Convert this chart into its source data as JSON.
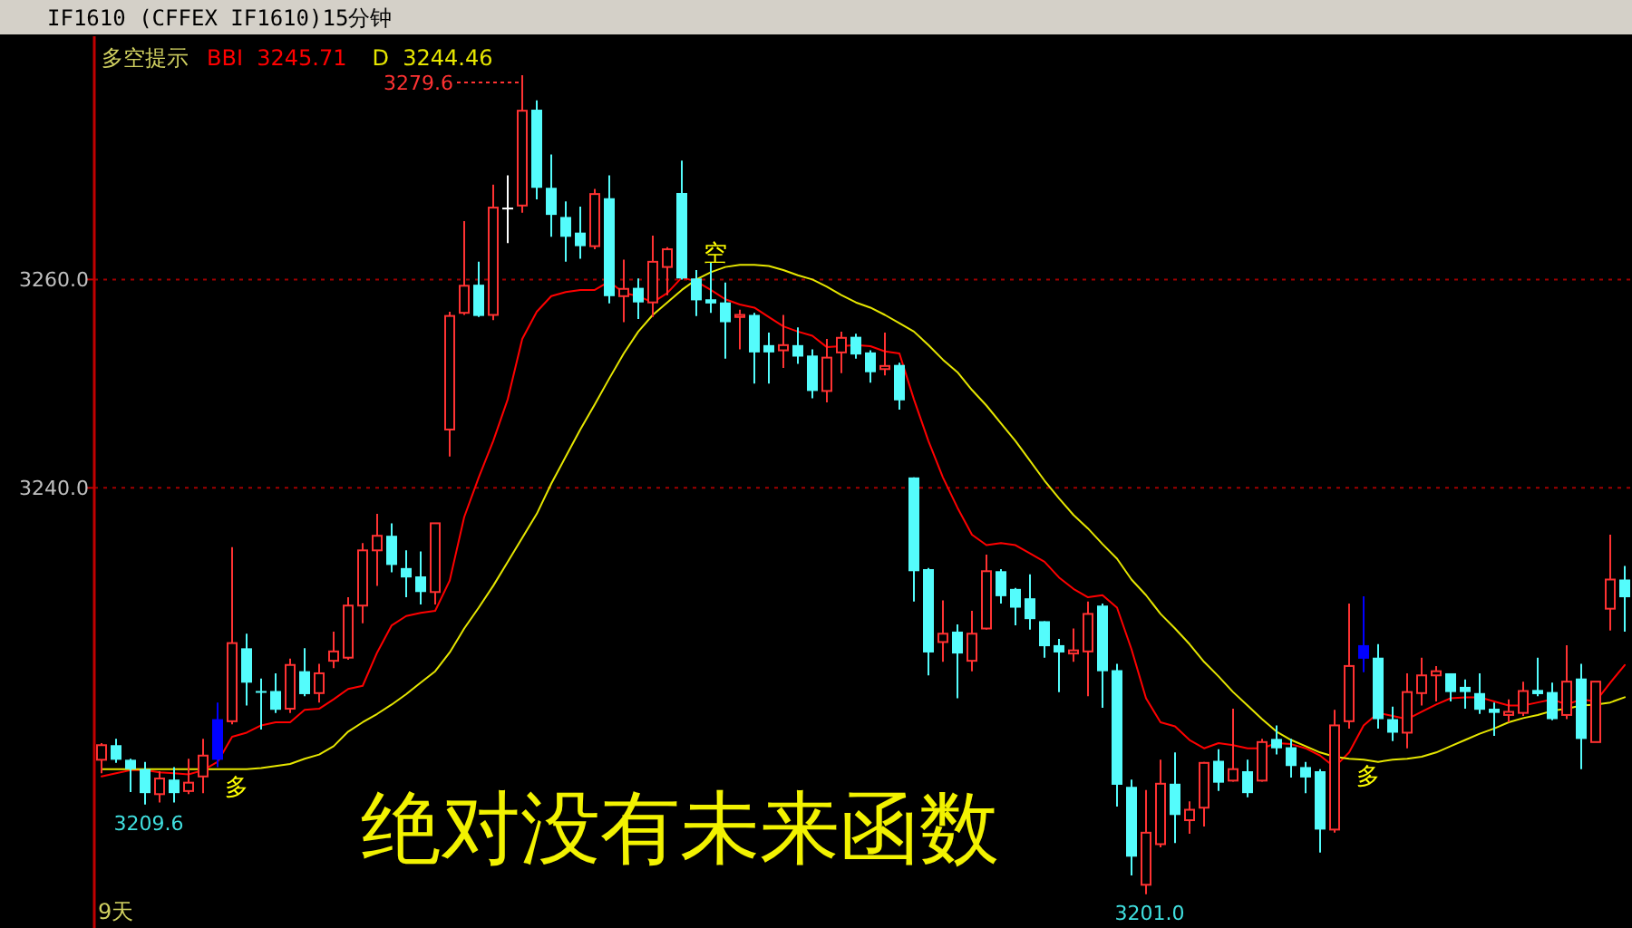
{
  "chart_data": {
    "type": "candlestick",
    "title": "IF1610  (CFFEX IF1610)15分钟",
    "legend_title": "多空提示",
    "legend": "top left",
    "grid": "y",
    "ylim": [
      3198.1,
      3283.0
    ],
    "yticks": [
      {
        "value": 3240,
        "label": "3240.0"
      },
      {
        "value": 3260,
        "label": "3260.0"
      }
    ],
    "categories": [
      null,
      null,
      null,
      null,
      null,
      null,
      null,
      null,
      null,
      null,
      null,
      null,
      null,
      null,
      null,
      null,
      null,
      null,
      null,
      null,
      null,
      null,
      null,
      null,
      null,
      null,
      null,
      null,
      null,
      null,
      null,
      null,
      null,
      null,
      null,
      null,
      null,
      null,
      null,
      null,
      null,
      null,
      null,
      null,
      null,
      null,
      null,
      null,
      null,
      null,
      null,
      null,
      null,
      null,
      null,
      null,
      null,
      null,
      null,
      null,
      null,
      null,
      null,
      null,
      null,
      null,
      null,
      null,
      null,
      null,
      null,
      null,
      null,
      null,
      null,
      null,
      null,
      null,
      null,
      null,
      null,
      null,
      null,
      null,
      null,
      null,
      null,
      null,
      null,
      null,
      null,
      null,
      null,
      null,
      null,
      null,
      null,
      null,
      null,
      null,
      null,
      null,
      null,
      null,
      null,
      null
    ],
    "ohlc": [
      [
        3213.9,
        3215.5,
        3212.6,
        3215.3
      ],
      [
        3215.3,
        3215.9,
        3213.6,
        3213.9
      ],
      [
        3213.9,
        3214.0,
        3210.8,
        3213.0
      ],
      [
        3213.0,
        3213.7,
        3209.6,
        3210.7
      ],
      [
        3210.6,
        3212.8,
        3209.8,
        3212.1
      ],
      [
        3212.0,
        3213.2,
        3209.8,
        3210.7
      ],
      [
        3210.9,
        3214.0,
        3210.6,
        3211.7
      ],
      [
        3212.3,
        3215.9,
        3210.7,
        3214.3
      ],
      [
        3213.9,
        3219.4,
        3213.2,
        3217.8
      ],
      [
        3217.6,
        3234.3,
        3217.3,
        3225.1
      ],
      [
        3224.6,
        3226.0,
        3219.1,
        3221.3
      ],
      [
        3220.5,
        3221.7,
        3216.8,
        3220.4
      ],
      [
        3220.5,
        3222.2,
        3218.4,
        3218.7
      ],
      [
        3218.8,
        3223.6,
        3218.4,
        3223.0
      ],
      [
        3222.4,
        3224.6,
        3220.0,
        3220.2
      ],
      [
        3220.3,
        3223.1,
        3219.4,
        3222.2
      ],
      [
        3223.4,
        3226.2,
        3222.7,
        3224.3
      ],
      [
        3223.7,
        3229.5,
        3223.5,
        3228.7
      ],
      [
        3228.7,
        3234.7,
        3227.0,
        3234.0
      ],
      [
        3234.0,
        3237.5,
        3230.6,
        3235.4
      ],
      [
        3235.4,
        3236.6,
        3231.9,
        3232.6
      ],
      [
        3232.3,
        3234.0,
        3229.5,
        3231.4
      ],
      [
        3231.5,
        3233.9,
        3228.8,
        3230.0
      ],
      [
        3230.0,
        3236.6,
        3228.8,
        3236.6
      ],
      [
        3245.6,
        3256.9,
        3243.0,
        3256.5
      ],
      [
        3256.8,
        3265.6,
        3256.6,
        3259.4
      ],
      [
        3259.5,
        3261.7,
        3256.4,
        3256.5
      ],
      [
        3256.6,
        3269.1,
        3256.1,
        3266.9
      ],
      [
        3266.9,
        3270.0,
        3263.5,
        3266.9
      ],
      [
        3267.1,
        3279.6,
        3266.4,
        3276.2
      ],
      [
        3276.3,
        3277.2,
        3267.7,
        3268.8
      ],
      [
        3268.8,
        3272.0,
        3264.1,
        3266.2
      ],
      [
        3266.0,
        3267.5,
        3261.7,
        3264.1
      ],
      [
        3264.5,
        3267.0,
        3262.0,
        3263.2
      ],
      [
        3263.2,
        3268.7,
        3262.9,
        3268.2
      ],
      [
        3267.8,
        3270.0,
        3257.7,
        3258.4
      ],
      [
        3258.4,
        3261.9,
        3255.9,
        3259.1
      ],
      [
        3259.2,
        3260.1,
        3256.2,
        3257.8
      ],
      [
        3257.8,
        3264.2,
        3256.4,
        3261.7
      ],
      [
        3261.2,
        3263.1,
        3258.5,
        3262.9
      ],
      [
        3268.3,
        3271.4,
        3260.0,
        3260.1
      ],
      [
        3260.1,
        3260.9,
        3256.5,
        3258.0
      ],
      [
        3258.1,
        3261.6,
        3256.8,
        3257.7
      ],
      [
        3257.8,
        3259.7,
        3252.4,
        3255.9
      ],
      [
        3256.4,
        3257.1,
        3253.3,
        3256.6
      ],
      [
        3256.6,
        3256.8,
        3250.0,
        3253.0
      ],
      [
        3253.7,
        3254.9,
        3250.0,
        3253.0
      ],
      [
        3253.2,
        3256.6,
        3251.5,
        3253.7
      ],
      [
        3253.7,
        3255.4,
        3251.9,
        3252.6
      ],
      [
        3252.7,
        3253.3,
        3248.6,
        3249.3
      ],
      [
        3249.3,
        3254.3,
        3248.2,
        3252.5
      ],
      [
        3253.0,
        3255.0,
        3251.0,
        3254.4
      ],
      [
        3254.5,
        3254.8,
        3252.4,
        3252.8
      ],
      [
        3253.0,
        3253.2,
        3250.1,
        3251.1
      ],
      [
        3251.4,
        3254.9,
        3250.8,
        3251.7
      ],
      [
        3251.8,
        3252.0,
        3247.5,
        3248.4
      ],
      [
        3241.0,
        3241.0,
        3229.1,
        3232.0
      ],
      [
        3232.2,
        3232.3,
        3222.0,
        3224.2
      ],
      [
        3225.2,
        3229.2,
        3223.3,
        3226.0
      ],
      [
        3226.2,
        3226.9,
        3219.8,
        3224.1
      ],
      [
        3223.4,
        3228.2,
        3222.4,
        3226.0
      ],
      [
        3226.5,
        3233.6,
        3226.4,
        3232.0
      ],
      [
        3232.0,
        3232.2,
        3228.9,
        3229.6
      ],
      [
        3230.3,
        3230.4,
        3226.8,
        3228.5
      ],
      [
        3229.4,
        3231.7,
        3226.4,
        3227.4
      ],
      [
        3227.2,
        3227.2,
        3223.7,
        3224.8
      ],
      [
        3224.9,
        3225.5,
        3220.4,
        3224.2
      ],
      [
        3224.1,
        3226.5,
        3223.3,
        3224.4
      ],
      [
        3224.3,
        3229.1,
        3220.0,
        3227.9
      ],
      [
        3228.7,
        3228.9,
        3218.9,
        3222.4
      ],
      [
        3222.5,
        3223.1,
        3209.4,
        3211.5
      ],
      [
        3211.3,
        3212.0,
        3202.8,
        3204.6
      ],
      [
        3201.9,
        3211.0,
        3201.0,
        3206.9
      ],
      [
        3205.8,
        3213.9,
        3205.5,
        3211.6
      ],
      [
        3211.6,
        3214.6,
        3205.9,
        3208.6
      ],
      [
        3208.1,
        3209.9,
        3206.8,
        3209.1
      ],
      [
        3209.3,
        3213.7,
        3207.5,
        3213.6
      ],
      [
        3213.8,
        3214.9,
        3210.9,
        3211.7
      ],
      [
        3211.9,
        3218.8,
        3211.8,
        3213.0
      ],
      [
        3212.8,
        3213.9,
        3210.3,
        3210.7
      ],
      [
        3211.9,
        3215.9,
        3211.8,
        3215.6
      ],
      [
        3215.9,
        3217.2,
        3214.4,
        3215.0
      ],
      [
        3215.1,
        3215.9,
        3212.2,
        3213.3
      ],
      [
        3213.2,
        3213.7,
        3210.7,
        3212.2
      ],
      [
        3212.8,
        3213.0,
        3205.0,
        3207.2
      ],
      [
        3207.2,
        3218.7,
        3206.9,
        3217.2
      ],
      [
        3217.6,
        3228.9,
        3216.9,
        3222.9
      ],
      [
        3223.6,
        3229.6,
        3222.3,
        3224.9
      ],
      [
        3223.7,
        3225.0,
        3216.9,
        3217.8
      ],
      [
        3217.8,
        3219.0,
        3215.7,
        3216.5
      ],
      [
        3216.5,
        3222.2,
        3215.0,
        3220.4
      ],
      [
        3220.3,
        3223.7,
        3219.1,
        3222.0
      ],
      [
        3222.0,
        3222.9,
        3219.5,
        3222.4
      ],
      [
        3222.2,
        3222.2,
        3219.5,
        3220.4
      ],
      [
        3220.9,
        3221.6,
        3218.8,
        3220.4
      ],
      [
        3220.3,
        3222.2,
        3218.3,
        3218.7
      ],
      [
        3218.8,
        3219.4,
        3216.2,
        3218.4
      ],
      [
        3218.2,
        3219.7,
        3217.5,
        3218.5
      ],
      [
        3218.4,
        3221.4,
        3218.1,
        3220.5
      ],
      [
        3220.6,
        3223.7,
        3220.0,
        3220.2
      ],
      [
        3220.4,
        3221.3,
        3217.7,
        3217.8
      ],
      [
        3218.2,
        3224.9,
        3217.8,
        3221.4
      ],
      [
        3221.7,
        3223.1,
        3213.0,
        3215.9
      ],
      [
        3215.6,
        3221.4,
        3215.6,
        3221.4
      ],
      [
        3228.4,
        3235.5,
        3226.3,
        3231.2
      ],
      [
        3231.2,
        3232.5,
        3226.2,
        3229.5
      ]
    ],
    "colors": [
      "#ff3232",
      "#54fcfc",
      "#54fcfc",
      "#54fcfc",
      "#ff3232",
      "#54fcfc",
      "#ff3232",
      "#ff3232",
      "#0000ff",
      "#ff3232",
      "#54fcfc",
      "#54fcfc",
      "#54fcfc",
      "#ff3232",
      "#54fcfc",
      "#ff3232",
      "#ff3232",
      "#ff3232",
      "#ff3232",
      "#ff3232",
      "#54fcfc",
      "#54fcfc",
      "#54fcfc",
      "#ff3232",
      "#ff3232",
      "#ff3232",
      "#54fcfc",
      "#ff3232",
      "#ffffff",
      "#ff3232",
      "#54fcfc",
      "#54fcfc",
      "#54fcfc",
      "#54fcfc",
      "#ff3232",
      "#54fcfc",
      "#ff3232",
      "#54fcfc",
      "#ff3232",
      "#ff3232",
      "#54fcfc",
      "#54fcfc",
      "#54fcfc",
      "#54fcfc",
      "#ff3232",
      "#54fcfc",
      "#54fcfc",
      "#ff3232",
      "#54fcfc",
      "#54fcfc",
      "#ff3232",
      "#ff3232",
      "#54fcfc",
      "#54fcfc",
      "#ff3232",
      "#54fcfc",
      "#54fcfc",
      "#54fcfc",
      "#ff3232",
      "#54fcfc",
      "#ff3232",
      "#ff3232",
      "#54fcfc",
      "#54fcfc",
      "#54fcfc",
      "#54fcfc",
      "#54fcfc",
      "#ff3232",
      "#ff3232",
      "#54fcfc",
      "#54fcfc",
      "#54fcfc",
      "#ff3232",
      "#ff3232",
      "#54fcfc",
      "#ff3232",
      "#ff3232",
      "#54fcfc",
      "#ff3232",
      "#54fcfc",
      "#ff3232",
      "#54fcfc",
      "#54fcfc",
      "#54fcfc",
      "#54fcfc",
      "#ff3232",
      "#ff3232",
      "#0000ff",
      "#54fcfc",
      "#54fcfc",
      "#ff3232",
      "#ff3232",
      "#ff3232",
      "#54fcfc",
      "#54fcfc",
      "#54fcfc",
      "#54fcfc",
      "#ff3232",
      "#ff3232",
      "#54fcfc",
      "#54fcfc",
      "#ff3232",
      "#54fcfc",
      "#ff3232",
      "#ff3232",
      "#54fcfc"
    ],
    "series": [
      {
        "name": "BBI  3245.71",
        "type": "line",
        "color": "#ff0000",
        "values": [
          3212.3,
          3212.6,
          3212.9,
          3212.9,
          3212.7,
          3212.6,
          3212.5,
          3212.9,
          3213.7,
          3216.1,
          3216.5,
          3217.2,
          3217.5,
          3217.5,
          3218.7,
          3218.8,
          3219.7,
          3220.7,
          3221.0,
          3224.2,
          3226.8,
          3227.7,
          3228.0,
          3228.2,
          3231.1,
          3237.2,
          3241.0,
          3244.5,
          3248.5,
          3254.3,
          3256.9,
          3258.4,
          3258.8,
          3259.0,
          3259.0,
          3259.8,
          3258.7,
          3258.4,
          3257.8,
          3258.7,
          3260.2,
          3259.8,
          3259.0,
          3258.1,
          3257.6,
          3257.3,
          3256.4,
          3255.5,
          3255.0,
          3254.6,
          3253.5,
          3253.6,
          3253.7,
          3253.6,
          3253.1,
          3252.9,
          3248.5,
          3244.5,
          3241.0,
          3238.1,
          3235.5,
          3234.5,
          3234.7,
          3234.5,
          3233.7,
          3232.9,
          3231.4,
          3230.3,
          3229.5,
          3229.7,
          3228.5,
          3224.5,
          3219.8,
          3217.5,
          3217.1,
          3215.8,
          3215.0,
          3215.5,
          3215.3,
          3215.0,
          3215.0,
          3215.5,
          3215.4,
          3215.0,
          3214.3,
          3213.2,
          3214.6,
          3217.2,
          3218.4,
          3218.1,
          3217.8,
          3218.5,
          3219.2,
          3219.8,
          3219.9,
          3219.9,
          3219.5,
          3219.1,
          3219.1,
          3219.4,
          3219.7,
          3219.2,
          3219.7,
          3219.5,
          3221.3,
          3223.0
        ]
      },
      {
        "name": "D  3244.46",
        "type": "line",
        "color": "#e6e600",
        "values": [
          3213.0,
          3213.0,
          3213.0,
          3213.0,
          3213.0,
          3213.0,
          3213.0,
          3213.0,
          3213.0,
          3213.0,
          3213.0,
          3213.1,
          3213.3,
          3213.5,
          3214.0,
          3214.4,
          3215.2,
          3216.6,
          3217.5,
          3218.3,
          3219.2,
          3220.2,
          3221.3,
          3222.4,
          3224.2,
          3226.5,
          3228.5,
          3230.6,
          3232.9,
          3235.2,
          3237.5,
          3240.4,
          3243.0,
          3245.6,
          3248.0,
          3250.5,
          3252.9,
          3255.0,
          3256.6,
          3257.8,
          3259.0,
          3260.0,
          3260.7,
          3261.2,
          3261.4,
          3261.4,
          3261.3,
          3260.9,
          3260.4,
          3260.0,
          3259.3,
          3258.5,
          3257.8,
          3257.3,
          3256.6,
          3255.8,
          3255.0,
          3253.7,
          3252.3,
          3251.1,
          3249.4,
          3247.9,
          3246.2,
          3244.5,
          3242.6,
          3240.7,
          3239.0,
          3237.4,
          3236.1,
          3234.6,
          3233.2,
          3231.2,
          3229.7,
          3227.9,
          3226.5,
          3225.0,
          3223.3,
          3221.9,
          3220.4,
          3219.1,
          3217.8,
          3216.6,
          3215.8,
          3215.2,
          3214.6,
          3214.2,
          3214.0,
          3213.9,
          3213.7,
          3213.9,
          3214.0,
          3214.2,
          3214.6,
          3215.2,
          3215.8,
          3216.4,
          3216.9,
          3217.5,
          3217.9,
          3218.2,
          3218.6,
          3218.8,
          3219.1,
          3219.2,
          3219.4,
          3219.9
        ]
      }
    ],
    "annotations": [
      "多",
      "空",
      "多",
      "9天",
      "绝对没有未来函数",
      "3279.6",
      "3209.6",
      "3201.0"
    ]
  }
}
